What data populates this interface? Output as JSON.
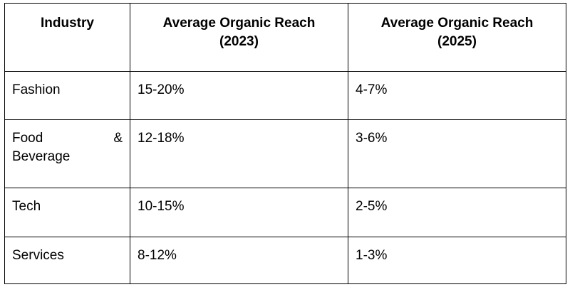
{
  "table": {
    "headers": {
      "industry": "Industry",
      "reach_2023_line1": "Average Organic Reach",
      "reach_2023_line2": "(2023)",
      "reach_2025_line1": "Average Organic Reach",
      "reach_2025_line2": "(2025)"
    },
    "rows": [
      {
        "industry": "Fashion",
        "reach_2023": "15-20%",
        "reach_2025": "4-7%"
      },
      {
        "industry_part1": "Food",
        "industry_part2": "&",
        "industry_part3": "Beverage",
        "reach_2023": "12-18%",
        "reach_2025": "3-6%"
      },
      {
        "industry": "Tech",
        "reach_2023": "10-15%",
        "reach_2025": "2-5%"
      },
      {
        "industry": "Services",
        "reach_2023": "8-12%",
        "reach_2025": "1-3%"
      }
    ]
  }
}
